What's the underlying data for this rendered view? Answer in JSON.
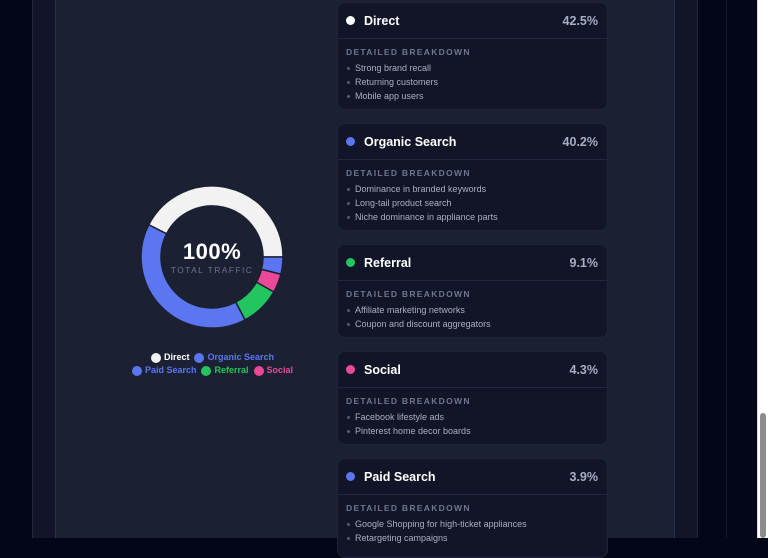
{
  "chart_data": {
    "type": "pie",
    "variant": "donut",
    "center_value": "100%",
    "center_label": "TOTAL TRAFFIC",
    "categories": [
      "Direct",
      "Organic Search",
      "Referral",
      "Social",
      "Paid Search"
    ],
    "values": [
      42.5,
      40.2,
      9.1,
      4.3,
      3.9
    ],
    "colors": [
      "#f2f2f2",
      "#5b76f0",
      "#22c55e",
      "#ec4899",
      "#5b76f0"
    ],
    "legend_position": "bottom",
    "legend": [
      "Direct",
      "Organic Search",
      "Paid Search",
      "Referral",
      "Social"
    ]
  },
  "chart": {
    "center_value": "100%",
    "center_label": "TOTAL TRAFFIC",
    "legend": [
      {
        "label": "Direct",
        "color": "#ffffff"
      },
      {
        "label": "Organic Search",
        "color": "#5b76f0"
      },
      {
        "label": "Paid Search",
        "color": "#5b76f0"
      },
      {
        "label": "Referral",
        "color": "#22c55e"
      },
      {
        "label": "Social",
        "color": "#ec4899"
      }
    ]
  },
  "cards": [
    {
      "title": "Direct",
      "percent": "42.5%",
      "color": "#ffffff",
      "subtitle": "DETAILED BREAKDOWN",
      "items": [
        "Strong brand recall",
        "Returning customers",
        "Mobile app users"
      ]
    },
    {
      "title": "Organic Search",
      "percent": "40.2%",
      "color": "#5b76f0",
      "subtitle": "DETAILED BREAKDOWN",
      "items": [
        "Dominance in branded keywords",
        "Long-tail product search",
        "Niche dominance in appliance parts"
      ]
    },
    {
      "title": "Referral",
      "percent": "9.1%",
      "color": "#22c55e",
      "subtitle": "DETAILED BREAKDOWN",
      "items": [
        "Affiliate marketing networks",
        "Coupon and discount aggregators"
      ]
    },
    {
      "title": "Social",
      "percent": "4.3%",
      "color": "#ec4899",
      "subtitle": "DETAILED BREAKDOWN",
      "items": [
        "Facebook lifestyle ads",
        "Pinterest home decor boards"
      ]
    },
    {
      "title": "Paid Search",
      "percent": "3.9%",
      "color": "#5b76f0",
      "subtitle": "DETAILED BREAKDOWN",
      "items": [
        "Google Shopping for high-ticket appliances",
        "Retargeting campaigns"
      ]
    }
  ]
}
